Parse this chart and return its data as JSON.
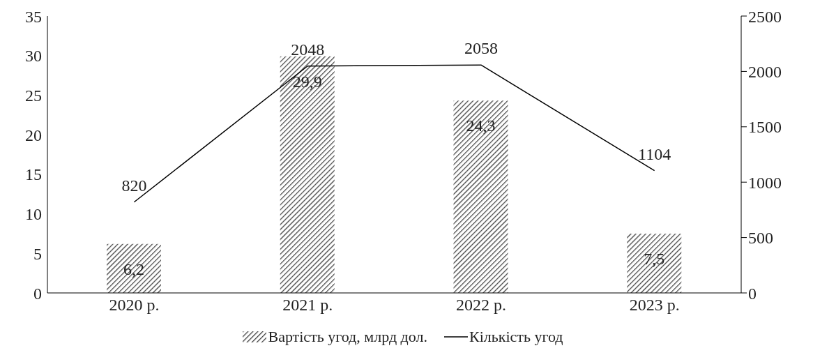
{
  "chart_data": {
    "type": "bar",
    "categories": [
      "2020 р.",
      "2021 р.",
      "2022 р.",
      "2023 р."
    ],
    "series": [
      {
        "name": "Вартість угод, млрд дол.",
        "color": "#404040",
        "values": [
          6.2,
          29.9,
          24.3,
          7.5
        ],
        "value_labels": [
          "6,2",
          "29,9",
          "24,3",
          "7,5"
        ]
      },
      {
        "name": "Кількість угод",
        "type": "line",
        "axis": "y2",
        "color": "#000000",
        "values": [
          820,
          2048,
          2058,
          1104
        ],
        "value_labels": [
          "820",
          "2048",
          "2058",
          "1104"
        ]
      }
    ],
    "ylim": [
      0,
      35
    ],
    "yticks": [
      0,
      5,
      10,
      15,
      20,
      25,
      30,
      35
    ],
    "y2lim": [
      0,
      2500
    ],
    "y2ticks": [
      0,
      500,
      1000,
      1500,
      2000,
      2500
    ],
    "grid": false,
    "legend": "bottom",
    "marker": "none"
  }
}
